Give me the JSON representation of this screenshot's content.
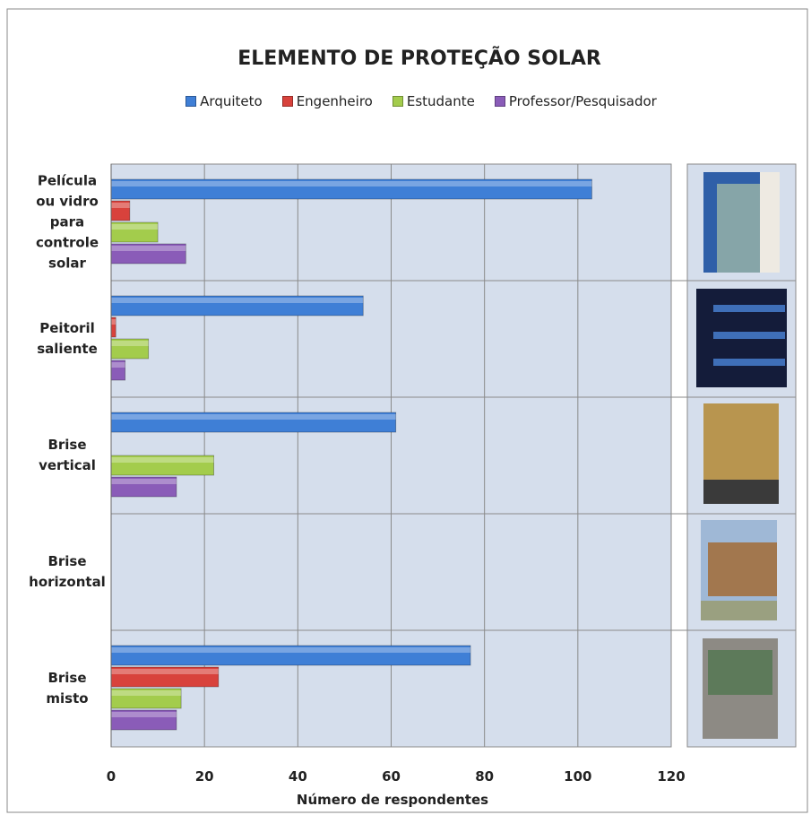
{
  "chart_data": {
    "type": "hbar",
    "title": "ELEMENTO DE PROTEÇÃO SOLAR",
    "categories": [
      "Película\nou vidro\npara\ncontrole\nsolar",
      "Peitoril\nsaliente",
      "Brise\nvertical",
      "Brise\nhorizontal",
      "Brise\nmisto"
    ],
    "series": [
      {
        "name": "Arquiteto",
        "color": "#3f7fd6",
        "values": [
          103,
          54,
          61,
          0,
          77
        ]
      },
      {
        "name": "Engenheiro",
        "color": "#d8423c",
        "values": [
          4,
          1,
          0,
          0,
          23
        ]
      },
      {
        "name": "Estudante",
        "color": "#a3cc4c",
        "values": [
          10,
          8,
          22,
          0,
          15
        ]
      },
      {
        "name": "Professor/Pesquisador",
        "color": "#8a5cb8",
        "values": [
          16,
          3,
          14,
          0,
          14
        ]
      }
    ],
    "xlabel": "Número de respondentes",
    "xlim": [
      0,
      120
    ],
    "xticks": [
      0,
      20,
      40,
      60,
      80,
      100,
      120
    ],
    "grid": true
  }
}
